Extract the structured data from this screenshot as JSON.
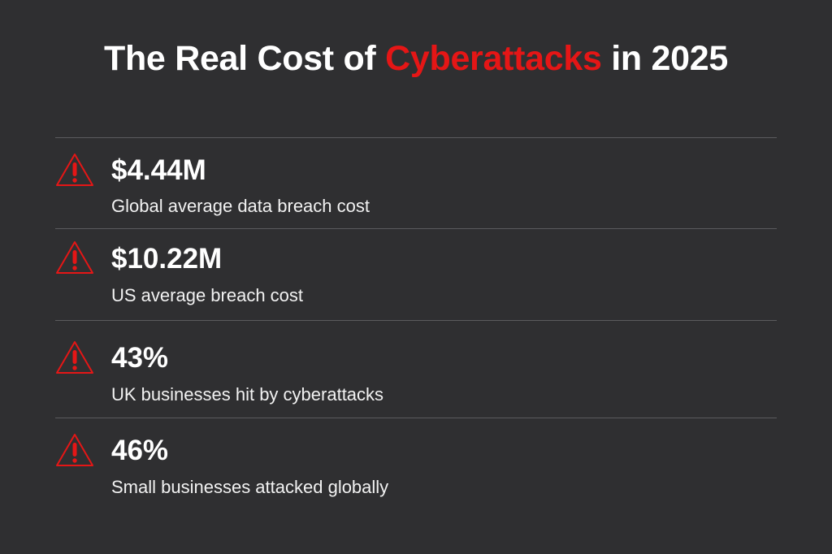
{
  "title": {
    "prefix": "The Real Cost of ",
    "accent": "Cyberattacks",
    "suffix": " in 2025"
  },
  "colors": {
    "background": "#2f2f31",
    "accent": "#e51616",
    "text": "#ffffff",
    "divider": "#5b5b5e"
  },
  "stats": [
    {
      "icon": "warning-triangle-icon",
      "value": "$4.44M",
      "label": "Global average data breach cost"
    },
    {
      "icon": "warning-triangle-icon",
      "value": "$10.22M",
      "label": "US average breach cost"
    },
    {
      "icon": "warning-triangle-icon",
      "value": "43%",
      "label": "UK businesses hit by cyberattacks"
    },
    {
      "icon": "warning-triangle-icon",
      "value": "46%",
      "label": "Small businesses attacked globally"
    }
  ]
}
